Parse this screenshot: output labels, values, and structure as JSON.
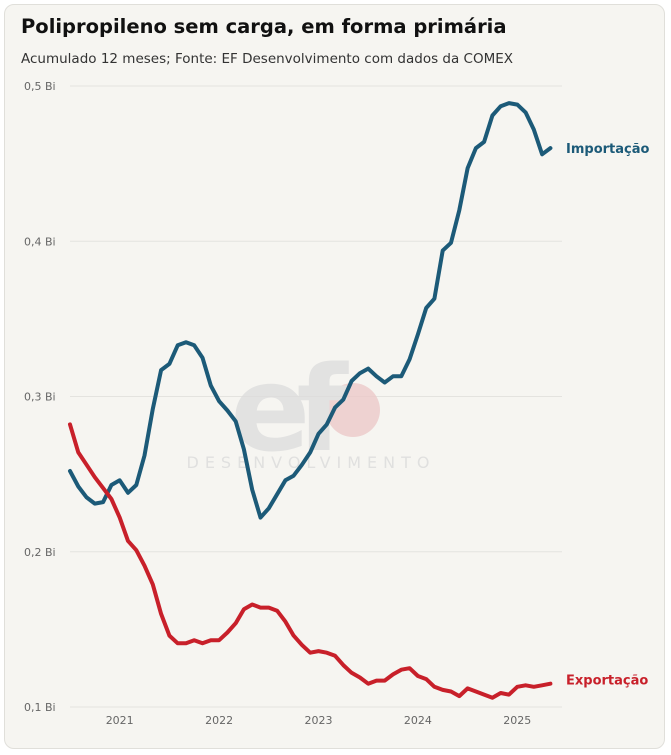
{
  "header": {
    "title": "Polipropileno sem carga, em forma primária",
    "subtitle": "Acumulado 12 meses; Fonte: EF Desenvolvimento com dados da COMEX"
  },
  "watermark": {
    "logo": "ef",
    "text": "DESENVOLVIMENTO"
  },
  "colors": {
    "importacao": "#1c5a78",
    "exportacao": "#c8202a",
    "grid": "#e4e3df"
  },
  "chart_data": {
    "type": "line",
    "title": "Polipropileno sem carga, em forma primária",
    "subtitle": "Acumulado 12 meses; Fonte: EF Desenvolvimento com dados da COMEX",
    "xlabel": "",
    "ylabel": "",
    "ylim": [
      0.1,
      0.5
    ],
    "xlim": [
      2020.5,
      2025.45
    ],
    "y_ticks": [
      {
        "value": 0.1,
        "label": "0,1 Bi"
      },
      {
        "value": 0.2,
        "label": "0,2 Bi"
      },
      {
        "value": 0.3,
        "label": "0,3 Bi"
      },
      {
        "value": 0.4,
        "label": "0,4 Bi"
      },
      {
        "value": 0.5,
        "label": "0,5 Bi"
      }
    ],
    "x_ticks": [
      {
        "value": 2021,
        "label": "2021"
      },
      {
        "value": 2022,
        "label": "2022"
      },
      {
        "value": 2023,
        "label": "2023"
      },
      {
        "value": 2024,
        "label": "2024"
      },
      {
        "value": 2025,
        "label": "2025"
      }
    ],
    "grid": true,
    "legend": "right-end labels",
    "x_start": 2020.5,
    "x_step": 0.0833333,
    "series": [
      {
        "name": "Importação",
        "color_key": "importacao",
        "values": [
          0.252,
          0.242,
          0.235,
          0.231,
          0.232,
          0.243,
          0.246,
          0.238,
          0.243,
          0.262,
          0.292,
          0.317,
          0.321,
          0.333,
          0.335,
          0.333,
          0.325,
          0.307,
          0.297,
          0.291,
          0.284,
          0.266,
          0.24,
          0.222,
          0.228,
          0.237,
          0.246,
          0.249,
          0.256,
          0.264,
          0.276,
          0.282,
          0.293,
          0.298,
          0.31,
          0.315,
          0.318,
          0.313,
          0.309,
          0.313,
          0.313,
          0.324,
          0.34,
          0.357,
          0.363,
          0.394,
          0.399,
          0.42,
          0.447,
          0.46,
          0.464,
          0.481,
          0.487,
          0.489,
          0.488,
          0.483,
          0.472,
          0.456,
          0.46
        ]
      },
      {
        "name": "Exportação",
        "color_key": "exportacao",
        "values": [
          0.282,
          0.264,
          0.256,
          0.248,
          0.241,
          0.234,
          0.222,
          0.207,
          0.201,
          0.191,
          0.179,
          0.16,
          0.146,
          0.141,
          0.141,
          0.143,
          0.141,
          0.143,
          0.143,
          0.148,
          0.154,
          0.163,
          0.166,
          0.164,
          0.164,
          0.162,
          0.155,
          0.146,
          0.14,
          0.135,
          0.136,
          0.135,
          0.133,
          0.127,
          0.122,
          0.119,
          0.115,
          0.117,
          0.117,
          0.121,
          0.124,
          0.125,
          0.12,
          0.118,
          0.113,
          0.111,
          0.11,
          0.107,
          0.112,
          0.11,
          0.108,
          0.106,
          0.109,
          0.108,
          0.113,
          0.114,
          0.113,
          0.114,
          0.115
        ]
      }
    ]
  }
}
